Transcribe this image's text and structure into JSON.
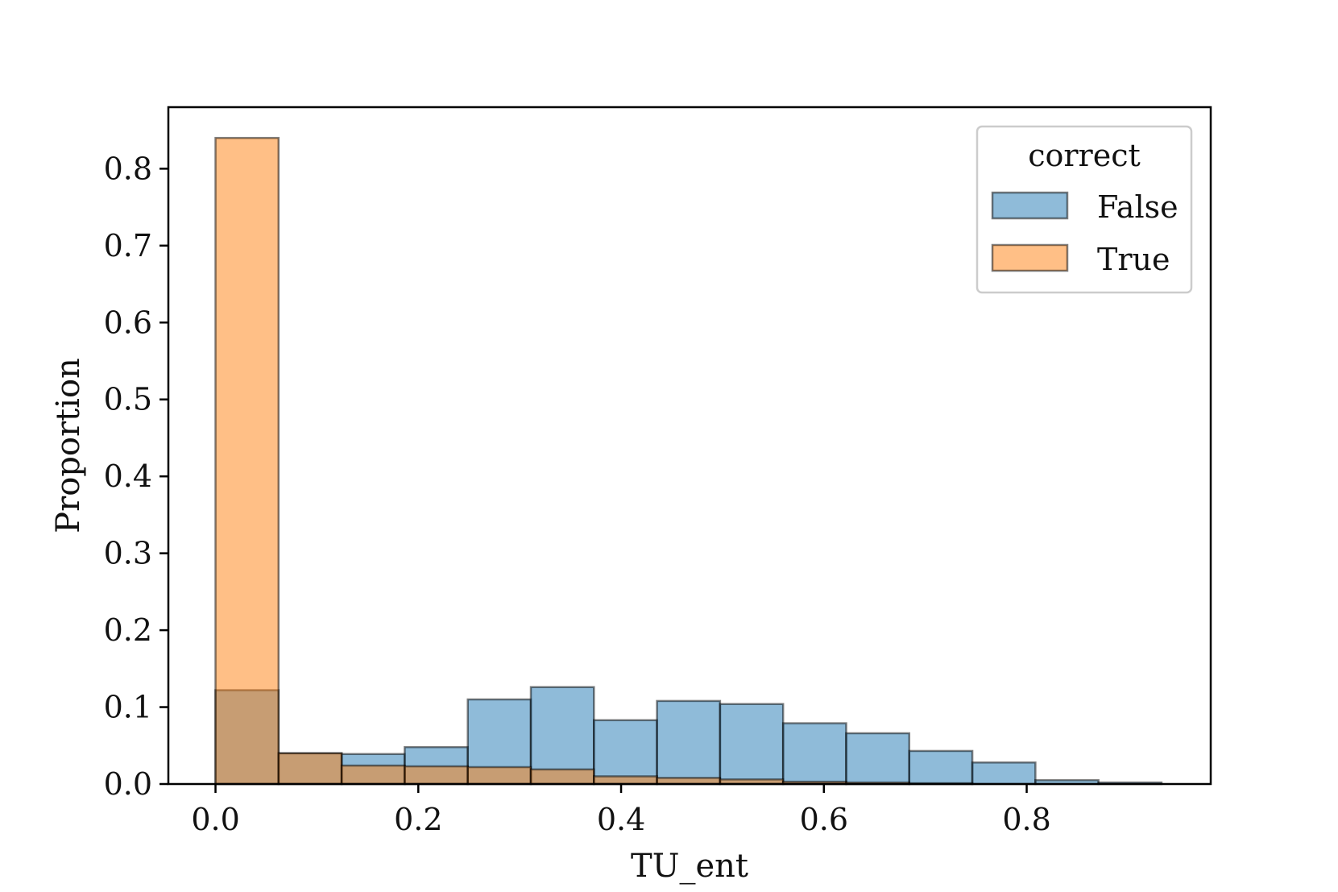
{
  "chart_data": {
    "type": "bar",
    "subtype": "histogram",
    "xlabel": "TU_ent",
    "ylabel": "Proportion",
    "xlim": [
      -0.0465,
      0.9815
    ],
    "ylim": [
      0,
      0.88
    ],
    "xticks": [
      0.0,
      0.2,
      0.4,
      0.6,
      0.8
    ],
    "xtick_labels": [
      "0.0",
      "0.2",
      "0.4",
      "0.6",
      "0.8"
    ],
    "yticks": [
      0.0,
      0.1,
      0.2,
      0.3,
      0.4,
      0.5,
      0.6,
      0.7,
      0.8
    ],
    "ytick_labels": [
      "0.0",
      "0.1",
      "0.2",
      "0.3",
      "0.4",
      "0.5",
      "0.6",
      "0.7",
      "0.8"
    ],
    "bin_edges": [
      0.0,
      0.0622,
      0.1244,
      0.1866,
      0.2488,
      0.311,
      0.3732,
      0.4354,
      0.4976,
      0.5598,
      0.622,
      0.6842,
      0.7464,
      0.8086,
      0.8708,
      0.933
    ],
    "legend": {
      "title": "correct",
      "position": "upper right"
    },
    "grid": false,
    "series": [
      {
        "name": "False",
        "color": "#1f77b4",
        "values": [
          0.122,
          0.04,
          0.039,
          0.048,
          0.11,
          0.126,
          0.083,
          0.108,
          0.104,
          0.079,
          0.066,
          0.043,
          0.028,
          0.005,
          0.002
        ]
      },
      {
        "name": "True",
        "color": "#ff7f0e",
        "values": [
          0.84,
          0.04,
          0.024,
          0.023,
          0.022,
          0.019,
          0.01,
          0.008,
          0.006,
          0.003,
          0.002,
          0.001,
          0.0,
          0.0,
          0.0
        ]
      }
    ]
  }
}
